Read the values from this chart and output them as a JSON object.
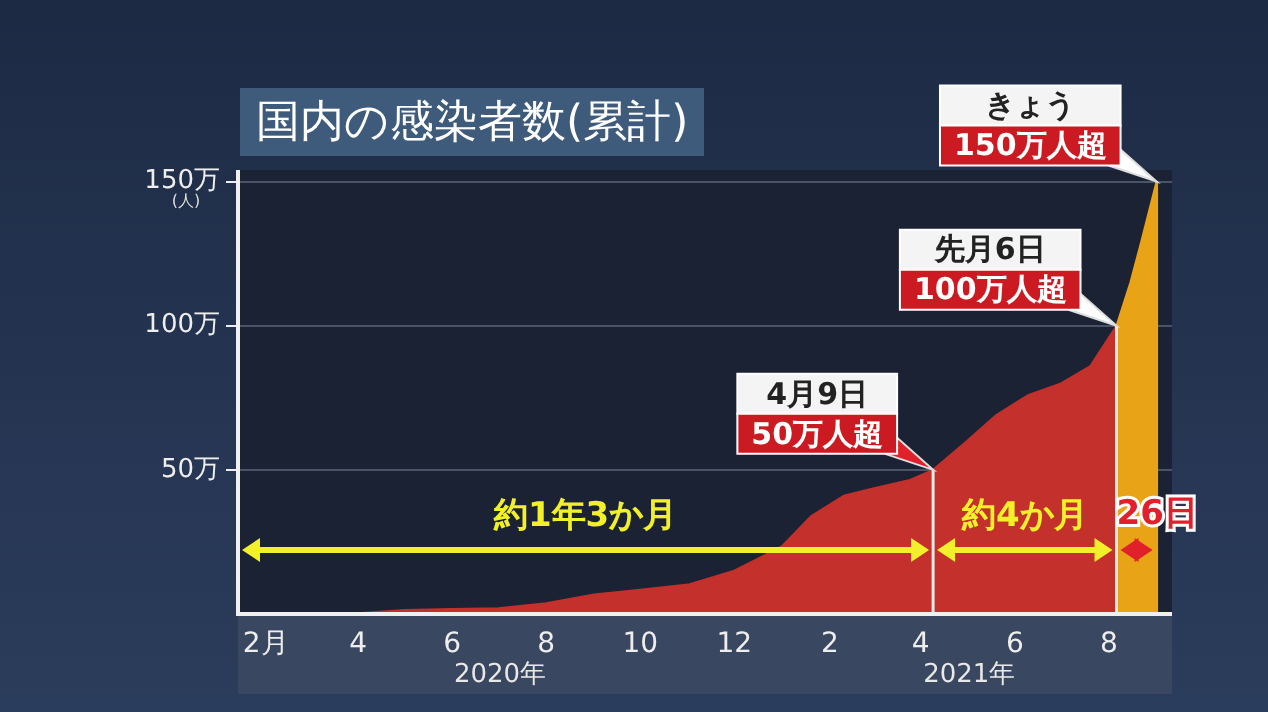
{
  "chart_data": {
    "type": "area",
    "title": "国内の感染者数(累計)",
    "ylabel": "(人)",
    "xlim": [
      "2020-01-14",
      "2021-09-11"
    ],
    "xticks": [
      {
        "value": "2020-02-01",
        "label": "2月"
      },
      {
        "value": "2020-04-01",
        "label": "4"
      },
      {
        "value": "2020-06-01",
        "label": "6"
      },
      {
        "value": "2020-08-01",
        "label": "8"
      },
      {
        "value": "2020-10-01",
        "label": "10"
      },
      {
        "value": "2020-12-01",
        "label": "12"
      },
      {
        "value": "2021-02-01",
        "label": "2"
      },
      {
        "value": "2021-04-01",
        "label": "4"
      },
      {
        "value": "2021-06-01",
        "label": "6"
      },
      {
        "value": "2021-08-01",
        "label": "8"
      }
    ],
    "ylim": [
      0,
      154
    ],
    "yticks": [
      {
        "value": 50,
        "label": "50万"
      },
      {
        "value": 100,
        "label": "100万"
      },
      {
        "value": 150,
        "label": "150万"
      }
    ],
    "grid": "y",
    "legend": false,
    "series": [
      {
        "color": "#c4302b",
        "x": [
          "2020-01-14",
          "2020-03-01",
          "2020-04-01",
          "2020-05-01",
          "2020-06-01",
          "2020-07-01",
          "2020-08-01",
          "2020-09-01",
          "2020-10-01",
          "2020-11-01",
          "2020-12-01",
          "2021-01-01",
          "2021-01-20",
          "2021-02-10",
          "2021-03-01",
          "2021-03-25",
          "2021-04-09",
          "2021-05-01",
          "2021-05-20",
          "2021-06-10",
          "2021-07-01",
          "2021-07-20",
          "2021-08-06"
        ],
        "values": [
          0,
          0.1,
          0.3,
          1.4,
          1.7,
          2,
          3.7,
          6.8,
          8.4,
          10.2,
          15,
          23.5,
          34,
          41,
          43.5,
          46.5,
          50,
          60,
          69,
          76,
          80,
          86,
          100
        ]
      },
      {
        "color": "#e8a317",
        "x": [
          "2021-08-06",
          "2021-08-15",
          "2021-08-22",
          "2021-09-01"
        ],
        "values": [
          100,
          115,
          129,
          150
        ]
      }
    ],
    "ref_lines": [
      {
        "axis": "x",
        "value": "2021-04-09",
        "color": "#e8e8e8"
      },
      {
        "axis": "x",
        "value": "2021-08-06",
        "color": "#e8e8e8"
      },
      {
        "axis": "x",
        "value": "2021-09-01",
        "color": "#e8a317"
      }
    ],
    "annotations": [
      {
        "text": "4月9日\n50万人超",
        "x": "2021-04-09",
        "y": 50
      },
      {
        "text": "先月6日\n100万人超",
        "x": "2021-08-06",
        "y": 100
      },
      {
        "text": "きょう\n150万人超",
        "x": "2021-09-01",
        "y": 150
      },
      "約1年3か月",
      "約4か月",
      "26日",
      "2020年",
      "2021年"
    ]
  }
}
